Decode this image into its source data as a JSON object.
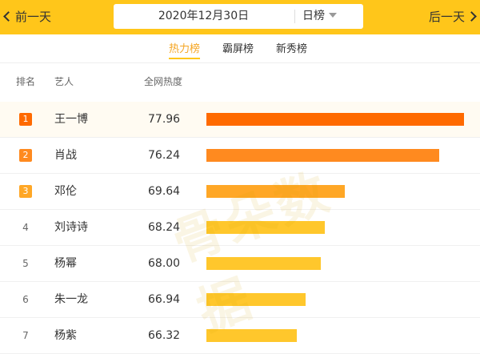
{
  "nav": {
    "prev_label": "前一天",
    "next_label": "后一天"
  },
  "date_selector": {
    "date": "2020年12月30日",
    "period": "日榜"
  },
  "tabs": [
    {
      "label": "热力榜",
      "active": true
    },
    {
      "label": "霸屏榜",
      "active": false
    },
    {
      "label": "新秀榜",
      "active": false
    }
  ],
  "table": {
    "headers": {
      "rank": "排名",
      "artist": "艺人",
      "score": "全网热度"
    },
    "max_score": 77.96,
    "rows": [
      {
        "rank": "1",
        "name": "王一博",
        "score": "77.96",
        "value": 77.96,
        "color": "#FF6A00",
        "badge": "#FF6A00"
      },
      {
        "rank": "2",
        "name": "肖战",
        "score": "76.24",
        "value": 76.24,
        "color": "#FF8A1F",
        "badge": "#FF8A1F"
      },
      {
        "rank": "3",
        "name": "邓伦",
        "score": "69.64",
        "value": 69.64,
        "color": "#FFA726",
        "badge": "#FFA726"
      },
      {
        "rank": "4",
        "name": "刘诗诗",
        "score": "68.24",
        "value": 68.24,
        "color": "#FFC72C",
        "badge": ""
      },
      {
        "rank": "5",
        "name": "杨幂",
        "score": "68.00",
        "value": 68.0,
        "color": "#FFC72C",
        "badge": ""
      },
      {
        "rank": "6",
        "name": "朱一龙",
        "score": "66.94",
        "value": 66.94,
        "color": "#FFC72C",
        "badge": ""
      },
      {
        "rank": "7",
        "name": "杨紫",
        "score": "66.32",
        "value": 66.32,
        "color": "#FFC72C",
        "badge": ""
      }
    ]
  },
  "watermark": {
    "text": "骨朵数据"
  }
}
